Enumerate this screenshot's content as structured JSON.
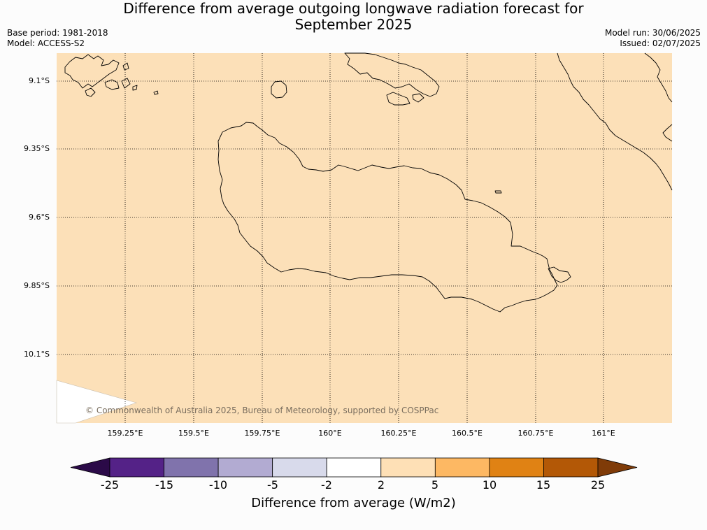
{
  "title": {
    "line1": "Difference from average outgoing longwave radiation forecast for",
    "line2": "September 2025"
  },
  "info_left": {
    "base_period": "Base period: 1981-2018",
    "model": "Model: ACCESS-S2"
  },
  "info_right": {
    "model_run": "Model run: 30/06/2025",
    "issued": "Issued: 02/07/2025"
  },
  "map": {
    "background_color": "#fce0b8",
    "gridlines": "dotted",
    "lat_labels": [
      "9.1°S",
      "9.35°S",
      "9.6°S",
      "9.85°S",
      "10.1°S"
    ],
    "lon_labels": [
      "159.25°E",
      "159.5°E",
      "159.75°E",
      "160°E",
      "160.25°E",
      "160.5°E",
      "160.75°E",
      "161°E"
    ],
    "copyright": "© Commonwealth of Australia 2025, Bureau of Meteorology, supported by COSPPac"
  },
  "colorbar": {
    "title": "Difference from average (W/m2)",
    "ticks": [
      "-25",
      "-15",
      "-10",
      "-5",
      "-2",
      "2",
      "5",
      "10",
      "15",
      "25"
    ],
    "colors": [
      "#2b0a48",
      "#542287",
      "#8073ac",
      "#b2abd2",
      "#d8daeb",
      "#ffffff",
      "#fee0b6",
      "#fdb863",
      "#e08214",
      "#b35806",
      "#7f3b08"
    ]
  }
}
